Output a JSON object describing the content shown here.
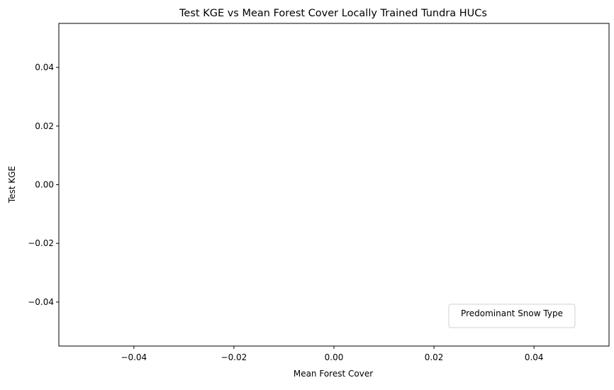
{
  "chart_data": {
    "type": "scatter",
    "title": "Test KGE vs Mean Forest Cover Locally Trained Tundra HUCs",
    "xlabel": "Mean Forest Cover",
    "ylabel": "Test KGE",
    "xlim": [
      -0.055,
      0.055
    ],
    "ylim": [
      -0.055,
      0.055
    ],
    "x_ticks": [
      -0.04,
      -0.02,
      0.0,
      0.02,
      0.04
    ],
    "x_tick_labels": [
      "−0.04",
      "−0.02",
      "0.00",
      "0.02",
      "0.04"
    ],
    "y_ticks": [
      -0.04,
      -0.02,
      0.0,
      0.02,
      0.04
    ],
    "y_tick_labels": [
      "−0.04",
      "−0.02",
      "0.00",
      "0.02",
      "0.04"
    ],
    "grid": false,
    "series": [],
    "legend": {
      "title": "Predominant Snow Type",
      "placement": "lower-right",
      "entries": []
    }
  }
}
